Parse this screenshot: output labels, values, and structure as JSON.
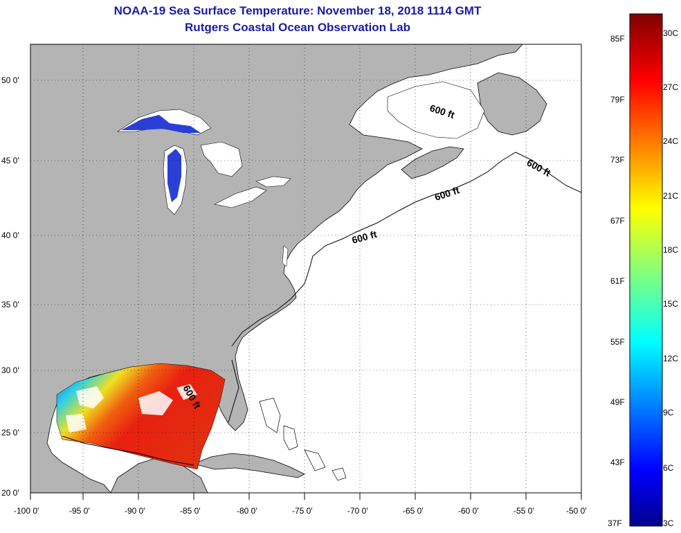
{
  "header": {
    "title": "NOAA-19 Sea Surface Temperature:  November 18, 2018 1114 GMT",
    "subtitle": "Rutgers Coastal Ocean Observation Lab"
  },
  "axes": {
    "lat_labels": [
      "50 0'",
      "45 0'",
      "40 0'",
      "35 0'",
      "30 0'",
      "25 0'",
      "20 0'"
    ],
    "lon_labels": [
      "-100 0'",
      "-95 0'",
      "-90 0'",
      "-85 0'",
      "-80 0'",
      "-75 0'",
      "-70 0'",
      "-65 0'",
      "-60 0'",
      "-55 0'",
      "-50 0'"
    ]
  },
  "contour": {
    "label": "600 ft"
  },
  "colorbar": {
    "fahrenheit": [
      "85F",
      "79F",
      "73F",
      "67F",
      "61F",
      "55F",
      "49F",
      "43F",
      "37F"
    ],
    "celsius": [
      "30C",
      "27C",
      "24C",
      "21C",
      "18C",
      "15C",
      "12C",
      "9C",
      "6C",
      "3C"
    ]
  },
  "colors": {
    "title": "#1a1aa6",
    "land": "#b4b4b4",
    "ocean": "#ffffff",
    "lake": "#2b3fd6"
  }
}
